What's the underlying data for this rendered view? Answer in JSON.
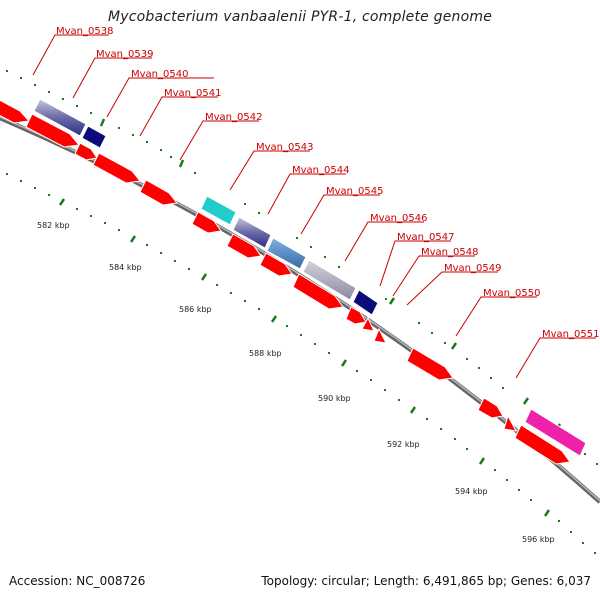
{
  "title": "Mycobacterium vanbaalenii PYR-1, complete genome",
  "footer": {
    "accession": "Accession: NC_008726",
    "topology": "Topology: circular; Length: 6,491,865 bp; Genes: 6,037"
  },
  "colors": {
    "gene_label": "#cc0000",
    "forward_gene": "#ff0000",
    "tick": "#1b7a1b",
    "backbone": "#888888",
    "cog_gray": "#b8b8c8",
    "cog_navy": "#0b0b7a",
    "cog_cyan": "#22cccc",
    "cog_steelblue": "#4f86c0",
    "cog_magenta": "#ee22aa"
  },
  "icons": {
    "gene": "arrow-shape",
    "cog_feature": "colored-block"
  },
  "gene_labels": [
    "Mvan_0538",
    "Mvan_0539",
    "Mvan_0540",
    "Mvan_0541",
    "Mvan_0542",
    "Mvan_0543",
    "Mvan_0544",
    "Mvan_0545",
    "Mvan_0546",
    "Mvan_0547",
    "Mvan_0548",
    "Mvan_0549",
    "Mvan_0550",
    "Mvan_0551"
  ],
  "kbp_labels": [
    "582 kbp",
    "584 kbp",
    "586 kbp",
    "588 kbp",
    "590 kbp",
    "592 kbp",
    "594 kbp",
    "596 kbp"
  ]
}
